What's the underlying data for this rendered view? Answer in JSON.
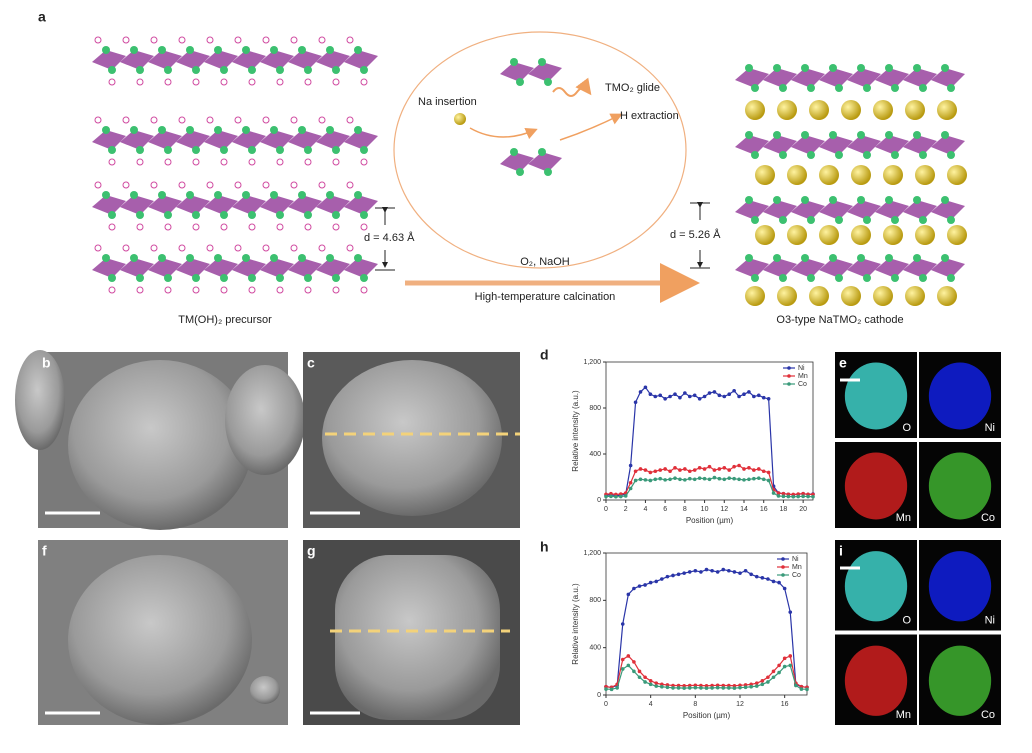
{
  "panel_labels": [
    "a",
    "b",
    "c",
    "d",
    "e",
    "f",
    "g",
    "h",
    "i"
  ],
  "schematic": {
    "na_insertion": "Na insertion",
    "glide": "TMO₂ glide",
    "h_extraction": "H extraction",
    "d_precursor": "d = 4.63 Å",
    "d_cathode": "d = 5.26 Å",
    "reagents": "O₂, NaOH",
    "process": "High-temperature calcination",
    "precursor": "TM(OH)₂ precursor",
    "cathode": "O3-type NaTMO₂ cathode"
  },
  "maps": {
    "e": [
      "O",
      "Ni",
      "Mn",
      "Co"
    ],
    "i": [
      "O",
      "Ni",
      "Mn",
      "Co"
    ]
  },
  "chart_data": [
    {
      "type": "line",
      "xlabel": "Position (µm)",
      "ylabel": "Relative intensity (a.u.)",
      "xlim": [
        0,
        21
      ],
      "ylim": [
        0,
        1200
      ],
      "xticks": [
        0,
        2,
        4,
        6,
        8,
        10,
        12,
        14,
        16,
        18,
        20
      ],
      "yticks": [
        0,
        400,
        800,
        {
          "value": 1200,
          "label": "1,200"
        }
      ],
      "legend": "upper right",
      "x": [
        0,
        0.5,
        1,
        1.5,
        2,
        2.5,
        3,
        3.5,
        4,
        4.5,
        5,
        5.5,
        6,
        6.5,
        7,
        7.5,
        8,
        8.5,
        9,
        9.5,
        10,
        10.5,
        11,
        11.5,
        12,
        12.5,
        13,
        13.5,
        14,
        14.5,
        15,
        15.5,
        16,
        16.5,
        17,
        17.5,
        18,
        18.5,
        19,
        19.5,
        20,
        20.5,
        21
      ],
      "series": [
        {
          "name": "Ni",
          "color": "#2a35a8",
          "values": [
            40,
            45,
            38,
            42,
            50,
            300,
            850,
            940,
            980,
            920,
            900,
            910,
            880,
            900,
            920,
            890,
            930,
            900,
            910,
            880,
            900,
            930,
            940,
            910,
            900,
            920,
            950,
            900,
            920,
            940,
            900,
            910,
            890,
            880,
            120,
            60,
            55,
            50,
            45,
            50,
            55,
            48,
            52
          ]
        },
        {
          "name": "Mn",
          "color": "#e0303a",
          "values": [
            50,
            55,
            48,
            52,
            60,
            150,
            250,
            270,
            260,
            240,
            250,
            260,
            270,
            250,
            280,
            260,
            270,
            250,
            260,
            280,
            270,
            290,
            260,
            270,
            280,
            260,
            290,
            300,
            270,
            280,
            260,
            270,
            250,
            240,
            90,
            60,
            55,
            50,
            48,
            52,
            55,
            50,
            48
          ]
        },
        {
          "name": "Co",
          "color": "#3a9a7a",
          "values": [
            30,
            32,
            28,
            30,
            35,
            100,
            170,
            180,
            175,
            170,
            180,
            185,
            175,
            180,
            190,
            180,
            175,
            185,
            180,
            190,
            185,
            180,
            195,
            185,
            180,
            190,
            185,
            180,
            175,
            180,
            185,
            190,
            180,
            170,
            60,
            35,
            32,
            30,
            28,
            30,
            32,
            30,
            28
          ]
        }
      ]
    },
    {
      "type": "line",
      "xlabel": "Position (µm)",
      "ylabel": "Relative intensity (a.u.)",
      "xlim": [
        0,
        18
      ],
      "ylim": [
        0,
        1200
      ],
      "xticks": [
        0,
        4,
        8,
        12,
        16
      ],
      "yticks": [
        0,
        400,
        800,
        {
          "value": 1200,
          "label": "1,200"
        }
      ],
      "legend": "upper right",
      "x": [
        0,
        0.5,
        1,
        1.5,
        2,
        2.5,
        3,
        3.5,
        4,
        4.5,
        5,
        5.5,
        6,
        6.5,
        7,
        7.5,
        8,
        8.5,
        9,
        9.5,
        10,
        10.5,
        11,
        11.5,
        12,
        12.5,
        13,
        13.5,
        14,
        14.5,
        15,
        15.5,
        16,
        16.5,
        17,
        17.5,
        18
      ],
      "series": [
        {
          "name": "Ni",
          "color": "#2a35a8",
          "values": [
            70,
            65,
            80,
            600,
            850,
            900,
            920,
            930,
            950,
            960,
            980,
            1000,
            1010,
            1020,
            1030,
            1040,
            1050,
            1040,
            1060,
            1050,
            1040,
            1060,
            1050,
            1040,
            1030,
            1050,
            1020,
            1000,
            990,
            980,
            960,
            950,
            900,
            700,
            90,
            70,
            65
          ]
        },
        {
          "name": "Mn",
          "color": "#e0303a",
          "values": [
            70,
            65,
            90,
            300,
            330,
            280,
            200,
            150,
            120,
            100,
            90,
            85,
            80,
            80,
            78,
            80,
            82,
            80,
            78,
            80,
            82,
            80,
            80,
            78,
            82,
            85,
            90,
            100,
            120,
            150,
            200,
            250,
            310,
            330,
            100,
            70,
            65
          ]
        },
        {
          "name": "Co",
          "color": "#3a9a7a",
          "values": [
            50,
            48,
            60,
            220,
            250,
            200,
            150,
            110,
            90,
            75,
            70,
            65,
            60,
            60,
            58,
            60,
            62,
            60,
            58,
            60,
            62,
            60,
            60,
            58,
            62,
            65,
            70,
            75,
            90,
            110,
            150,
            190,
            240,
            250,
            80,
            50,
            48
          ]
        }
      ]
    }
  ]
}
